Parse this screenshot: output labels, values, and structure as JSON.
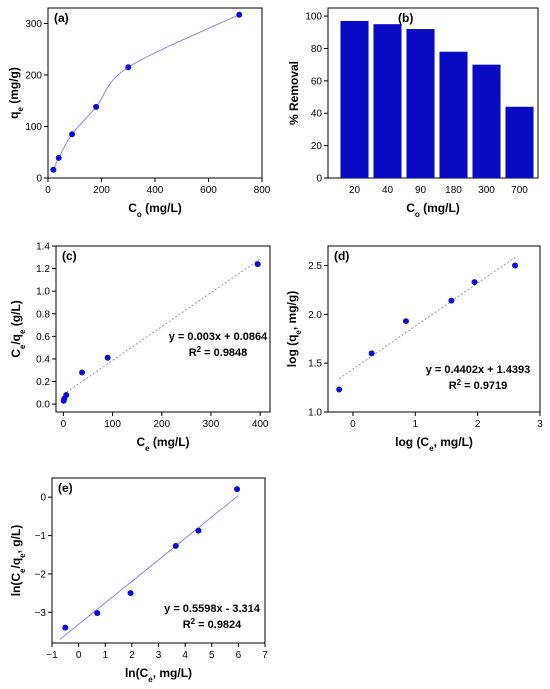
{
  "colors": {
    "marker": "#0a0ad0",
    "bar": "#0a0ac2",
    "fit": "#8a8ae8",
    "trend": "#999999"
  },
  "chart_data": [
    {
      "id": "a",
      "panel_label": "(a)",
      "type": "scatter",
      "xlabel": "C",
      "xlabel_sub": "o",
      "xlabel_suffix": " (mg/L)",
      "ylabel": "q",
      "ylabel_sub": "e",
      "ylabel_suffix": " (mg/g)",
      "xlim": [
        0,
        800
      ],
      "ylim": [
        0,
        330
      ],
      "xticks": [
        0,
        200,
        400,
        600,
        800
      ],
      "yticks": [
        0,
        100,
        200,
        300
      ],
      "x": [
        20,
        40,
        90,
        180,
        300,
        715
      ],
      "y": [
        16,
        39,
        85,
        138,
        215,
        317
      ],
      "fit": "smooth-curve"
    },
    {
      "id": "b",
      "panel_label": "(b)",
      "type": "bar",
      "xlabel": "C",
      "xlabel_sub": "o",
      "xlabel_suffix": " (mg/L)",
      "ylabel": "% Removal",
      "categories": [
        "20",
        "40",
        "90",
        "180",
        "300",
        "700"
      ],
      "values": [
        97,
        95,
        92,
        78,
        70,
        44
      ],
      "ylim": [
        0,
        105
      ],
      "yticks": [
        0,
        20,
        40,
        60,
        80,
        100
      ]
    },
    {
      "id": "c",
      "panel_label": "(c)",
      "type": "scatter",
      "xlabel": "C",
      "xlabel_sub": "e",
      "xlabel_suffix": " (mg/L)",
      "ylabel": "C",
      "ylabel_sub": "e",
      "ylabel_mid": "/q",
      "ylabel_sub2": "e",
      "ylabel_suffix": " (g/L)",
      "xlim": [
        -15,
        420
      ],
      "ylim": [
        -0.07,
        1.4
      ],
      "xticks": [
        0,
        100,
        200,
        300,
        400
      ],
      "yticks": [
        0.0,
        0.2,
        0.4,
        0.6,
        0.8,
        1.0,
        1.2,
        1.4
      ],
      "ytick_labels": [
        "0.0",
        "0.2",
        "0.4",
        "0.6",
        "0.8",
        "1.0",
        "1.2",
        "1.4"
      ],
      "x": [
        0.6,
        2,
        6,
        38,
        90,
        395
      ],
      "y": [
        0.03,
        0.05,
        0.08,
        0.28,
        0.41,
        1.24
      ],
      "trendline": {
        "slope": 0.003,
        "intercept": 0.0864,
        "x_range": [
          0,
          400
        ]
      },
      "equation": "y = 0.003x + 0.0864",
      "r2_label": "R",
      "r2_value": " = 0.9848"
    },
    {
      "id": "d",
      "panel_label": "(d)",
      "type": "scatter",
      "xlabel": "log (C",
      "xlabel_sub": "e",
      "xlabel_suffix": ", mg/L)",
      "ylabel": "log (q",
      "ylabel_sub": "e",
      "ylabel_suffix": ", mg/g)",
      "xlim": [
        -0.4,
        3
      ],
      "ylim": [
        1.0,
        2.7
      ],
      "xticks": [
        0,
        1,
        2,
        3
      ],
      "yticks": [
        1.0,
        1.5,
        2.0,
        2.5
      ],
      "ytick_labels": [
        "1.0",
        "1.5",
        "2.0",
        "2.5"
      ],
      "x": [
        -0.22,
        0.3,
        0.85,
        1.58,
        1.95,
        2.6
      ],
      "y": [
        1.23,
        1.6,
        1.93,
        2.14,
        2.33,
        2.5
      ],
      "trendline": {
        "slope": 0.4402,
        "intercept": 1.4393,
        "x_range": [
          -0.22,
          2.6
        ]
      },
      "equation": "y = 0.4402x + 1.4393",
      "r2_label": "R",
      "r2_value": " = 0.9719"
    },
    {
      "id": "e",
      "panel_label": "(e)",
      "type": "scatter",
      "xlabel": "ln(C",
      "xlabel_sub": "e",
      "xlabel_suffix": ", mg/L)",
      "ylabel": "ln(C",
      "ylabel_sub": "e",
      "ylabel_mid": "/q",
      "ylabel_sub2": "e",
      "ylabel_suffix": ", g/L)",
      "xlim": [
        -1,
        7
      ],
      "ylim": [
        -3.8,
        0.5
      ],
      "xticks": [
        -1,
        0,
        1,
        2,
        3,
        4,
        5,
        6,
        7
      ],
      "yticks": [
        -3,
        -2,
        -1,
        0
      ],
      "ytick_labels": [
        "−3",
        "−2",
        "−1",
        "0"
      ],
      "x": [
        -0.5,
        0.7,
        1.95,
        3.65,
        4.5,
        5.95
      ],
      "y": [
        -3.4,
        -3.02,
        -2.5,
        -1.27,
        -0.87,
        0.21
      ],
      "trendline": {
        "slope": 0.5598,
        "intercept": -3.314,
        "x_range": [
          -0.7,
          6
        ]
      },
      "equation": "y = 0.5598x - 3.314",
      "r2_label": "R",
      "r2_value": " = 0.9824"
    }
  ]
}
